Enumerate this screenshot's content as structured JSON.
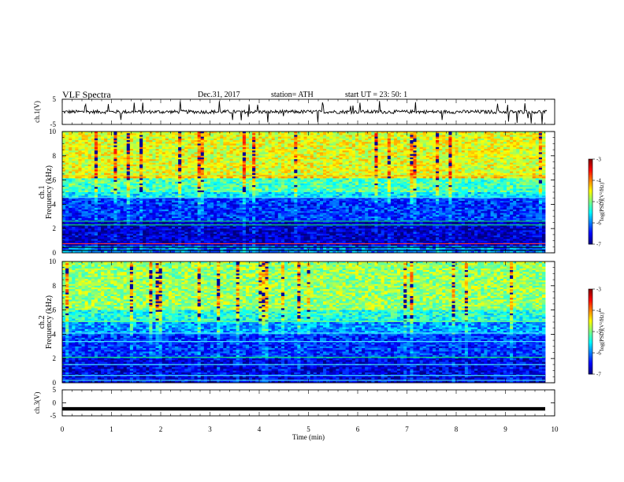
{
  "header": {
    "title": "VLF  Spectra",
    "date": "Dec.31, 2017",
    "station": "station= ATH",
    "start": "start  UT  =    23: 50: 1"
  },
  "chart_data": [
    {
      "type": "line",
      "panel": "ch1-waveform",
      "ylabel": "ch.1(V)",
      "ylim": [
        -5,
        5
      ],
      "yticks": [
        "5",
        "-5"
      ],
      "xlim": [
        0,
        10
      ],
      "description_values": {
        "baseline_V": 0,
        "line_color": "#000000"
      }
    },
    {
      "type": "heatmap",
      "panel": "ch1-spectrogram",
      "ylabel": "ch.1\nFrequency  (kHz)",
      "ylabel_top": "ch.1",
      "ylabel_bottom": "Frequency  (kHz)",
      "ylim": [
        0,
        10
      ],
      "yticks": [
        "0",
        "2",
        "4",
        "6",
        "8",
        "10"
      ],
      "xlim": [
        0,
        9.8
      ],
      "colorbar": {
        "label": "log(PSD)(V²/Hz)",
        "range": [
          -7,
          -3
        ],
        "ticks": [
          "-3",
          "-4",
          "-5",
          "-6",
          "-7"
        ]
      },
      "bands": [
        {
          "from_kHz": 6.5,
          "to_kHz": 10,
          "log_psd": -4.6
        },
        {
          "from_kHz": 6.2,
          "to_kHz": 6.5,
          "log_psd": -4.4
        },
        {
          "from_kHz": 5.0,
          "to_kHz": 6.2,
          "log_psd": -5.2
        },
        {
          "from_kHz": 4.6,
          "to_kHz": 5.0,
          "log_psd": -5.6
        },
        {
          "from_kHz": 2.6,
          "to_kHz": 4.6,
          "log_psd": -6.3
        },
        {
          "from_kHz": 0.6,
          "to_kHz": 2.6,
          "log_psd": -6.7
        },
        {
          "from_kHz": 0,
          "to_kHz": 0.6,
          "log_psd": -6.0
        }
      ]
    },
    {
      "type": "heatmap",
      "panel": "ch2-spectrogram",
      "ylabel_top": "ch.2",
      "ylabel_bottom": "Frequency  (kHz)",
      "ylim": [
        0,
        10
      ],
      "yticks": [
        "0",
        "2",
        "4",
        "6",
        "8",
        "10"
      ],
      "xlim": [
        0,
        9.8
      ],
      "colorbar": {
        "label": "log(PSD)(V²/Hz)",
        "range": [
          -7,
          -3
        ],
        "ticks": [
          "-3",
          "-4",
          "-5",
          "-6",
          "-7"
        ]
      },
      "bands": [
        {
          "from_kHz": 6.0,
          "to_kHz": 10,
          "log_psd": -4.9
        },
        {
          "from_kHz": 5.0,
          "to_kHz": 6.0,
          "log_psd": -5.4
        },
        {
          "from_kHz": 4.0,
          "to_kHz": 5.0,
          "log_psd": -5.9
        },
        {
          "from_kHz": 2.0,
          "to_kHz": 4.0,
          "log_psd": -6.3
        },
        {
          "from_kHz": 0,
          "to_kHz": 2.0,
          "log_psd": -6.6
        }
      ]
    },
    {
      "type": "line",
      "panel": "ch3-waveform",
      "ylabel": "ch.3(V)",
      "ylim": [
        -5,
        5
      ],
      "yticks": [
        "5",
        "0",
        "-5"
      ],
      "xlim": [
        0,
        10
      ],
      "description_values": {
        "level_V": -2.3
      }
    }
  ],
  "xaxis": {
    "label": "Time  (min)",
    "ticks": [
      "0",
      "1",
      "2",
      "3",
      "4",
      "5",
      "6",
      "7",
      "8",
      "9",
      "10"
    ],
    "range": [
      0,
      10
    ]
  }
}
